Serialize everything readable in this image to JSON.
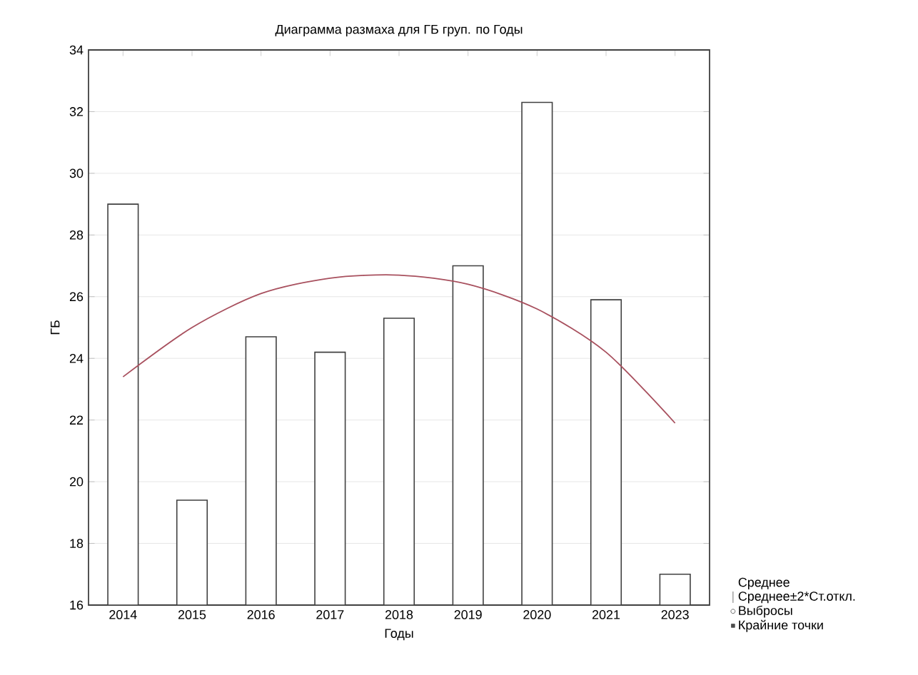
{
  "chart_data": {
    "type": "bar",
    "title": "Диаграмма размаха для ГБ груп. по Годы",
    "xlabel": "Годы",
    "ylabel": "ГБ",
    "categories": [
      "2014",
      "2015",
      "2016",
      "2017",
      "2018",
      "2019",
      "2020",
      "2021",
      "2023"
    ],
    "series": [
      {
        "name": "Среднее",
        "color": "#ffffff",
        "values": [
          29.0,
          19.4,
          24.7,
          24.2,
          25.3,
          27.0,
          32.3,
          25.9,
          17.0
        ]
      },
      {
        "type": "line",
        "color": "#a8505e",
        "values": [
          23.4,
          25.0,
          26.1,
          26.6,
          26.7,
          26.4,
          25.6,
          24.2,
          21.9
        ]
      }
    ],
    "ylim": [
      16,
      34
    ],
    "yticks": [
      16,
      18,
      20,
      22,
      24,
      26,
      28,
      30,
      32,
      34
    ],
    "grid": "y",
    "legend": "bottom right",
    "annotations": [
      "Среднее±2*Ст.откл.",
      "Выбросы",
      "Крайние точки"
    ]
  }
}
